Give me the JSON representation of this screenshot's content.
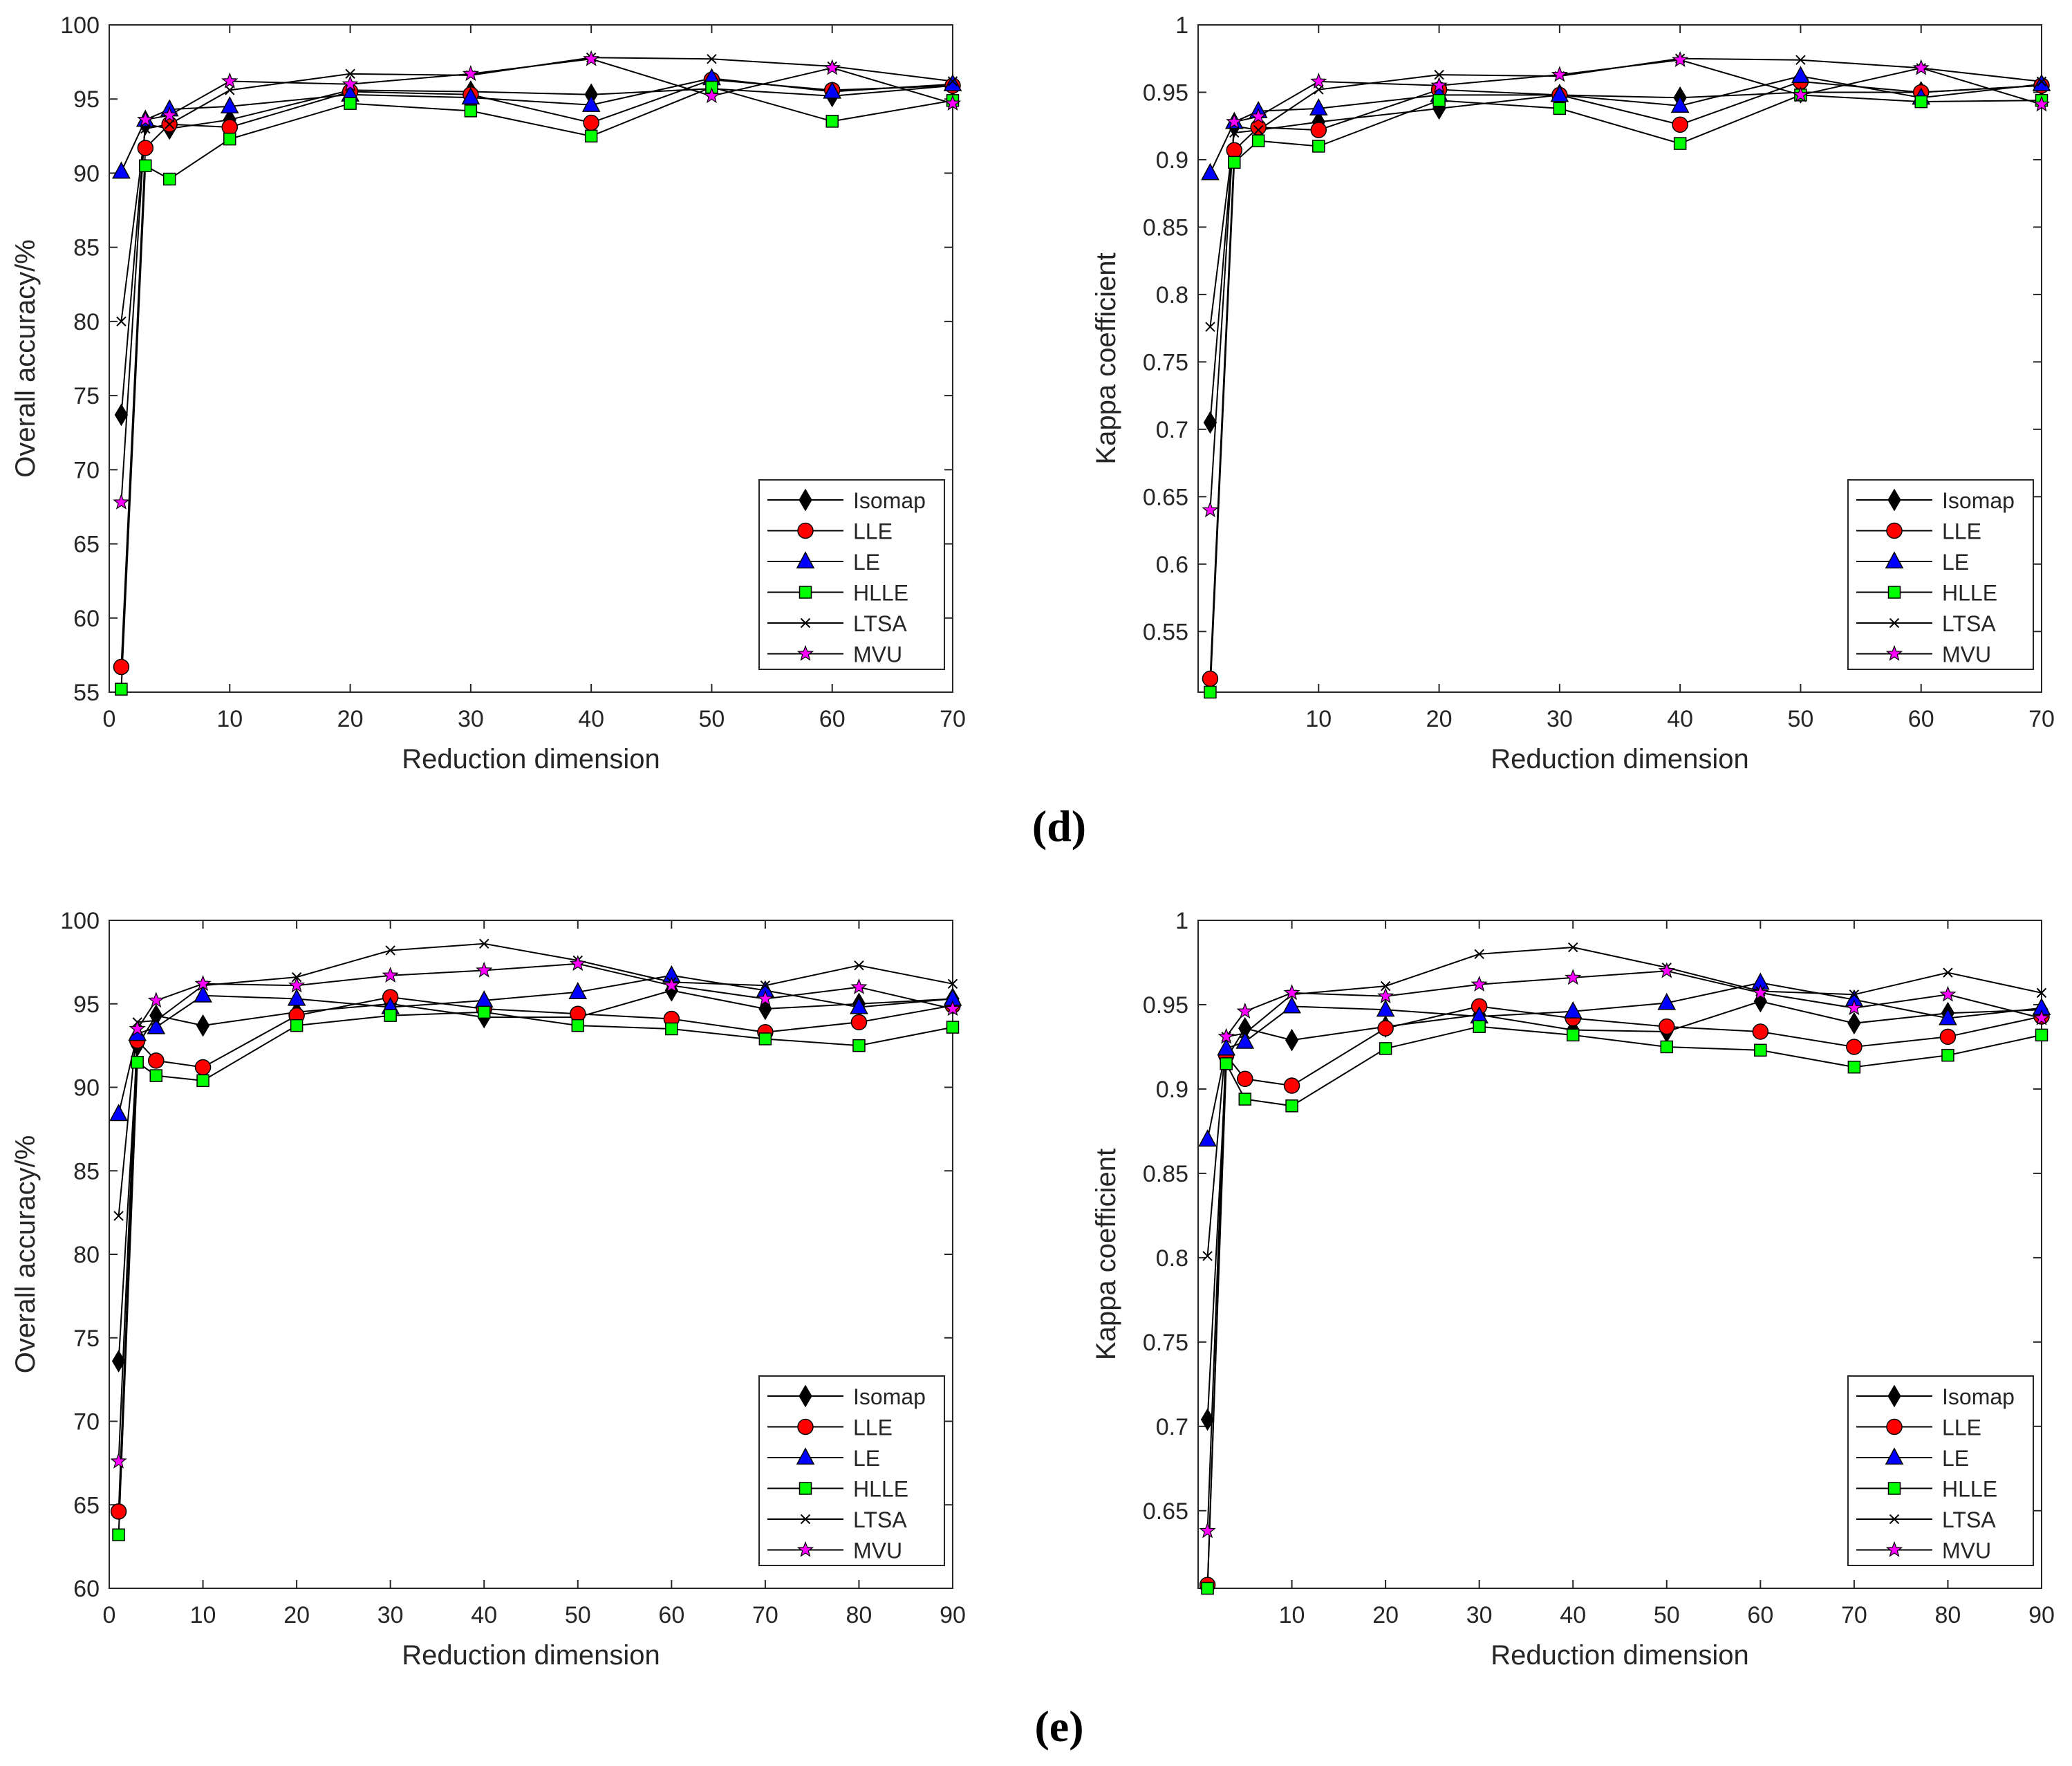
{
  "figure": {
    "panel_labels": [
      "(d)",
      "(e)"
    ]
  },
  "legend_entries": [
    {
      "name": "Isomap",
      "marker": "diamond",
      "color": "#000000"
    },
    {
      "name": "LLE",
      "marker": "circle",
      "color": "#ff0000"
    },
    {
      "name": "LE",
      "marker": "triangle",
      "color": "#0000ff"
    },
    {
      "name": "HLLE",
      "marker": "square",
      "color": "#00ff00"
    },
    {
      "name": "LTSA",
      "marker": "x",
      "color": "#000000"
    },
    {
      "name": "MVU",
      "marker": "star",
      "color": "#ff00ff"
    }
  ],
  "chart_data": [
    {
      "type": "line",
      "panel": "(d)",
      "xlabel": "Reduction dimension",
      "ylabel": "Overall accuracy/%",
      "xlim": [
        0,
        70
      ],
      "ylim": [
        55,
        100
      ],
      "xticks": [
        0,
        10,
        20,
        30,
        40,
        50,
        60,
        70
      ],
      "yticks": [
        55,
        60,
        65,
        70,
        75,
        80,
        85,
        90,
        95,
        100
      ],
      "legend_position": "bottom-right",
      "x": [
        1,
        3,
        5,
        10,
        20,
        30,
        40,
        50,
        60,
        70
      ],
      "series": [
        {
          "name": "Isomap",
          "values": [
            73.7,
            93.3,
            93.0,
            93.6,
            95.6,
            95.5,
            95.3,
            95.7,
            95.2,
            95.9
          ]
        },
        {
          "name": "LLE",
          "values": [
            56.7,
            91.7,
            93.3,
            93.1,
            95.5,
            95.3,
            93.4,
            96.3,
            95.6,
            95.9
          ]
        },
        {
          "name": "LE",
          "values": [
            90.1,
            93.6,
            94.3,
            94.5,
            95.3,
            95.1,
            94.6,
            96.4,
            95.5,
            96.0
          ]
        },
        {
          "name": "HLLE",
          "values": [
            55.2,
            90.5,
            89.6,
            92.3,
            94.7,
            94.2,
            92.5,
            95.8,
            93.5,
            94.9
          ]
        },
        {
          "name": "LTSA",
          "values": [
            80.0,
            93.0,
            93.3,
            95.6,
            96.7,
            96.6,
            97.8,
            97.7,
            97.2,
            96.2
          ]
        },
        {
          "name": "MVU",
          "values": [
            67.8,
            93.6,
            93.9,
            96.2,
            96.0,
            96.7,
            97.7,
            95.2,
            97.1,
            94.7
          ]
        }
      ]
    },
    {
      "type": "line",
      "panel": "(d)",
      "xlabel": "Reduction dimension",
      "ylabel": "Kappa coefficient",
      "xlim": [
        0,
        70
      ],
      "ylim": [
        0.505,
        1.0
      ],
      "xticks": [
        10,
        20,
        30,
        40,
        50,
        60,
        70
      ],
      "yticks": [
        0.55,
        0.6,
        0.65,
        0.7,
        0.75,
        0.8,
        0.85,
        0.9,
        0.95,
        1
      ],
      "yticklabels": [
        "0.55",
        "0.6",
        "0.65",
        "0.7",
        "0.75",
        "0.8",
        "0.85",
        "0.9",
        "0.95",
        "1"
      ],
      "legend_position": "bottom-right",
      "x": [
        1,
        3,
        5,
        10,
        20,
        30,
        40,
        50,
        60,
        70
      ],
      "series": [
        {
          "name": "Isomap",
          "values": [
            0.705,
            0.925,
            0.922,
            0.928,
            0.938,
            0.948,
            0.946,
            0.95,
            0.95,
            0.955
          ]
        },
        {
          "name": "LLE",
          "values": [
            0.515,
            0.907,
            0.924,
            0.922,
            0.952,
            0.948,
            0.926,
            0.958,
            0.95,
            0.955
          ]
        },
        {
          "name": "LE",
          "values": [
            0.89,
            0.928,
            0.936,
            0.938,
            0.948,
            0.948,
            0.94,
            0.962,
            0.946,
            0.956
          ]
        },
        {
          "name": "HLLE",
          "values": [
            0.505,
            0.898,
            0.914,
            0.91,
            0.944,
            0.938,
            0.912,
            0.948,
            0.943,
            0.944
          ]
        },
        {
          "name": "LTSA",
          "values": [
            0.776,
            0.92,
            0.922,
            0.952,
            0.963,
            0.962,
            0.975,
            0.974,
            0.968,
            0.958
          ]
        },
        {
          "name": "MVU",
          "values": [
            0.64,
            0.928,
            0.932,
            0.958,
            0.955,
            0.963,
            0.974,
            0.948,
            0.968,
            0.941
          ]
        }
      ]
    },
    {
      "type": "line",
      "panel": "(e)",
      "xlabel": "Reduction dimension",
      "ylabel": "Overall accuracy/%",
      "xlim": [
        0,
        90
      ],
      "ylim": [
        60,
        100
      ],
      "xticks": [
        0,
        10,
        20,
        30,
        40,
        50,
        60,
        70,
        80,
        90
      ],
      "yticks": [
        60,
        65,
        70,
        75,
        80,
        85,
        90,
        95,
        100
      ],
      "legend_position": "bottom-right",
      "x": [
        1,
        3,
        5,
        10,
        20,
        30,
        40,
        50,
        60,
        70,
        80,
        90
      ],
      "series": [
        {
          "name": "Isomap",
          "values": [
            73.6,
            92.5,
            94.3,
            93.7,
            94.5,
            95.0,
            94.2,
            94.2,
            95.8,
            94.7,
            95.0,
            95.3
          ]
        },
        {
          "name": "LLE",
          "values": [
            64.6,
            92.8,
            91.6,
            91.2,
            94.3,
            95.4,
            94.7,
            94.4,
            94.1,
            93.3,
            93.9,
            94.9
          ]
        },
        {
          "name": "LE",
          "values": [
            88.4,
            93.2,
            93.6,
            95.5,
            95.3,
            94.8,
            95.2,
            95.7,
            96.7,
            95.8,
            94.8,
            95.3
          ]
        },
        {
          "name": "HLLE",
          "values": [
            63.2,
            91.5,
            90.7,
            90.4,
            93.7,
            94.3,
            94.5,
            93.7,
            93.5,
            92.9,
            92.5,
            93.6
          ]
        },
        {
          "name": "LTSA",
          "values": [
            82.3,
            93.9,
            94.0,
            96.1,
            96.6,
            98.2,
            98.6,
            97.6,
            96.3,
            96.1,
            97.3,
            96.2
          ]
        },
        {
          "name": "MVU",
          "values": [
            67.6,
            93.5,
            95.2,
            96.2,
            96.1,
            96.7,
            97.0,
            97.4,
            96.1,
            95.3,
            96.0,
            94.7
          ]
        }
      ]
    },
    {
      "type": "line",
      "panel": "(e)",
      "xlabel": "Reduction dimension",
      "ylabel": "Kappa coefficient",
      "xlim": [
        0,
        90
      ],
      "ylim": [
        0.604,
        1.0
      ],
      "xticks": [
        10,
        20,
        30,
        40,
        50,
        60,
        70,
        80,
        90
      ],
      "yticks": [
        0.65,
        0.7,
        0.75,
        0.8,
        0.85,
        0.9,
        0.95,
        1
      ],
      "yticklabels": [
        "0.65",
        "0.7",
        "0.75",
        "0.8",
        "0.85",
        "0.9",
        "0.95",
        "1"
      ],
      "legend_position": "bottom-right",
      "x": [
        1,
        3,
        5,
        10,
        20,
        30,
        40,
        50,
        60,
        70,
        80,
        90
      ],
      "series": [
        {
          "name": "Isomap",
          "values": [
            0.704,
            0.918,
            0.936,
            0.929,
            0.937,
            0.944,
            0.935,
            0.934,
            0.952,
            0.939,
            0.945,
            0.947
          ]
        },
        {
          "name": "LLE",
          "values": [
            0.606,
            0.92,
            0.906,
            0.902,
            0.936,
            0.949,
            0.942,
            0.937,
            0.934,
            0.925,
            0.931,
            0.943
          ]
        },
        {
          "name": "LE",
          "values": [
            0.87,
            0.924,
            0.928,
            0.949,
            0.947,
            0.943,
            0.946,
            0.951,
            0.963,
            0.953,
            0.942,
            0.948
          ]
        },
        {
          "name": "HLLE",
          "values": [
            0.604,
            0.915,
            0.894,
            0.89,
            0.924,
            0.937,
            0.932,
            0.925,
            0.923,
            0.913,
            0.92,
            0.932
          ]
        },
        {
          "name": "LTSA",
          "values": [
            0.801,
            0.931,
            0.933,
            0.956,
            0.961,
            0.98,
            0.984,
            0.972,
            0.958,
            0.956,
            0.969,
            0.957
          ]
        },
        {
          "name": "MVU",
          "values": [
            0.638,
            0.931,
            0.946,
            0.957,
            0.955,
            0.962,
            0.966,
            0.97,
            0.957,
            0.948,
            0.956,
            0.942
          ]
        }
      ]
    }
  ]
}
